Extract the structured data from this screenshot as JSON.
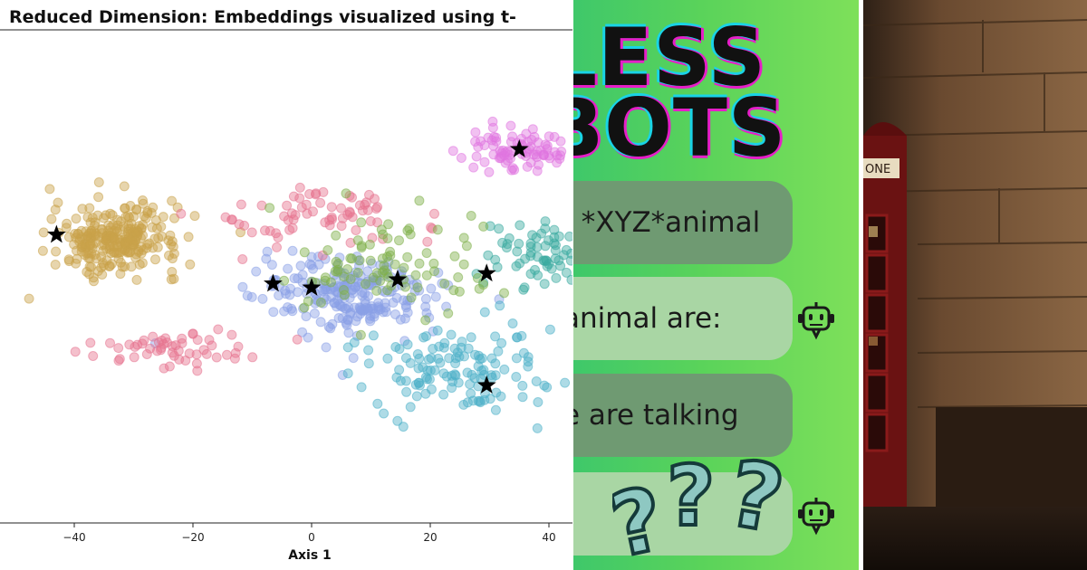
{
  "panels": {
    "scatter": {
      "title": "Reduced Dimension: Embeddings visualized using t-",
      "xlabel": "Axis 1",
      "x_ticks": [
        "−40",
        "−20",
        "0",
        "20",
        "40"
      ]
    },
    "chatbot": {
      "headline_line1": "LESS",
      "headline_line2": "BOTS",
      "bubbles": [
        {
          "text": "f *XYZ*animal",
          "style": "dark"
        },
        {
          "text": "animal are:",
          "style": "light"
        },
        {
          "text": "e are talking",
          "style": "dark"
        },
        {
          "text": "",
          "style": "light"
        }
      ],
      "colors": {
        "background": "#5ad35a",
        "bubble_dark": "#6f9a72",
        "bubble_light": "#a9d6a4",
        "question_mark": "#8ec8c2"
      }
    },
    "photo": {
      "sign_text": "ONE"
    }
  },
  "chart_data": {
    "type": "scatter",
    "title": "Reduced Dimension: Embeddings visualized using t-",
    "xlabel": "Axis 1",
    "ylabel": "",
    "xlim": [
      -52,
      44
    ],
    "ylim": [
      -44,
      42
    ],
    "x_ticks": [
      -40,
      -20,
      0,
      20,
      40
    ],
    "grid": false,
    "clusters": [
      {
        "color": "#c9a24a",
        "center": [
          -33,
          12
        ],
        "spread": [
          9,
          7
        ],
        "count": 260
      },
      {
        "color": "#8aa0e6",
        "center": [
          7,
          -2
        ],
        "spread": [
          13,
          8
        ],
        "count": 230
      },
      {
        "color": "#e6738f",
        "center": [
          0,
          18
        ],
        "spread": [
          15,
          7
        ],
        "count": 70
      },
      {
        "color": "#e6738f",
        "center": [
          -22,
          -15
        ],
        "spread": [
          12,
          4
        ],
        "count": 55
      },
      {
        "color": "#e075e0",
        "center": [
          35,
          34
        ],
        "spread": [
          8,
          4
        ],
        "count": 90
      },
      {
        "color": "#3aaaa0",
        "center": [
          38,
          8
        ],
        "spread": [
          7,
          7
        ],
        "count": 70
      },
      {
        "color": "#4cb0c8",
        "center": [
          25,
          -20
        ],
        "spread": [
          14,
          9
        ],
        "count": 130
      },
      {
        "color": "#7fb04a",
        "center": [
          12,
          5
        ],
        "spread": [
          16,
          10
        ],
        "count": 90
      }
    ],
    "centroids": [
      {
        "x": -43,
        "y": 13
      },
      {
        "x": -6.5,
        "y": 1
      },
      {
        "x": 0,
        "y": 0
      },
      {
        "x": 14.5,
        "y": 2
      },
      {
        "x": 29.5,
        "y": 3.5
      },
      {
        "x": 35,
        "y": 34
      },
      {
        "x": 29.5,
        "y": -24
      }
    ]
  }
}
